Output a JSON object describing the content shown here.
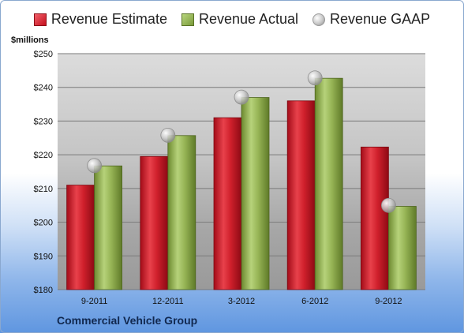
{
  "chart_data": {
    "type": "bar",
    "categories": [
      "9-2011",
      "12-2011",
      "3-2012",
      "6-2012",
      "9-2012"
    ],
    "series": [
      {
        "name": "Revenue Estimate",
        "kind": "bar",
        "color": "#c81a26",
        "values": [
          211,
          219.5,
          231,
          236,
          222.3
        ]
      },
      {
        "name": "Revenue Actual",
        "kind": "bar",
        "color": "#8aaa4a",
        "values": [
          216.7,
          225.7,
          237,
          242.7,
          204.7
        ]
      },
      {
        "name": "Revenue GAAP",
        "kind": "marker",
        "color": "#b8b8b8",
        "values": [
          216.8,
          225.8,
          237.1,
          242.8,
          205
        ]
      }
    ],
    "ylabel": "$millions",
    "ylim": [
      180,
      250
    ],
    "yticks": [
      180,
      190,
      200,
      210,
      220,
      230,
      240,
      250
    ],
    "ytick_labels": [
      "$180",
      "$190",
      "$200",
      "$210",
      "$220",
      "$230",
      "$240",
      "$250"
    ],
    "grid": true,
    "legend_position": "top"
  },
  "footer": {
    "company": "Commercial Vehicle Group"
  }
}
